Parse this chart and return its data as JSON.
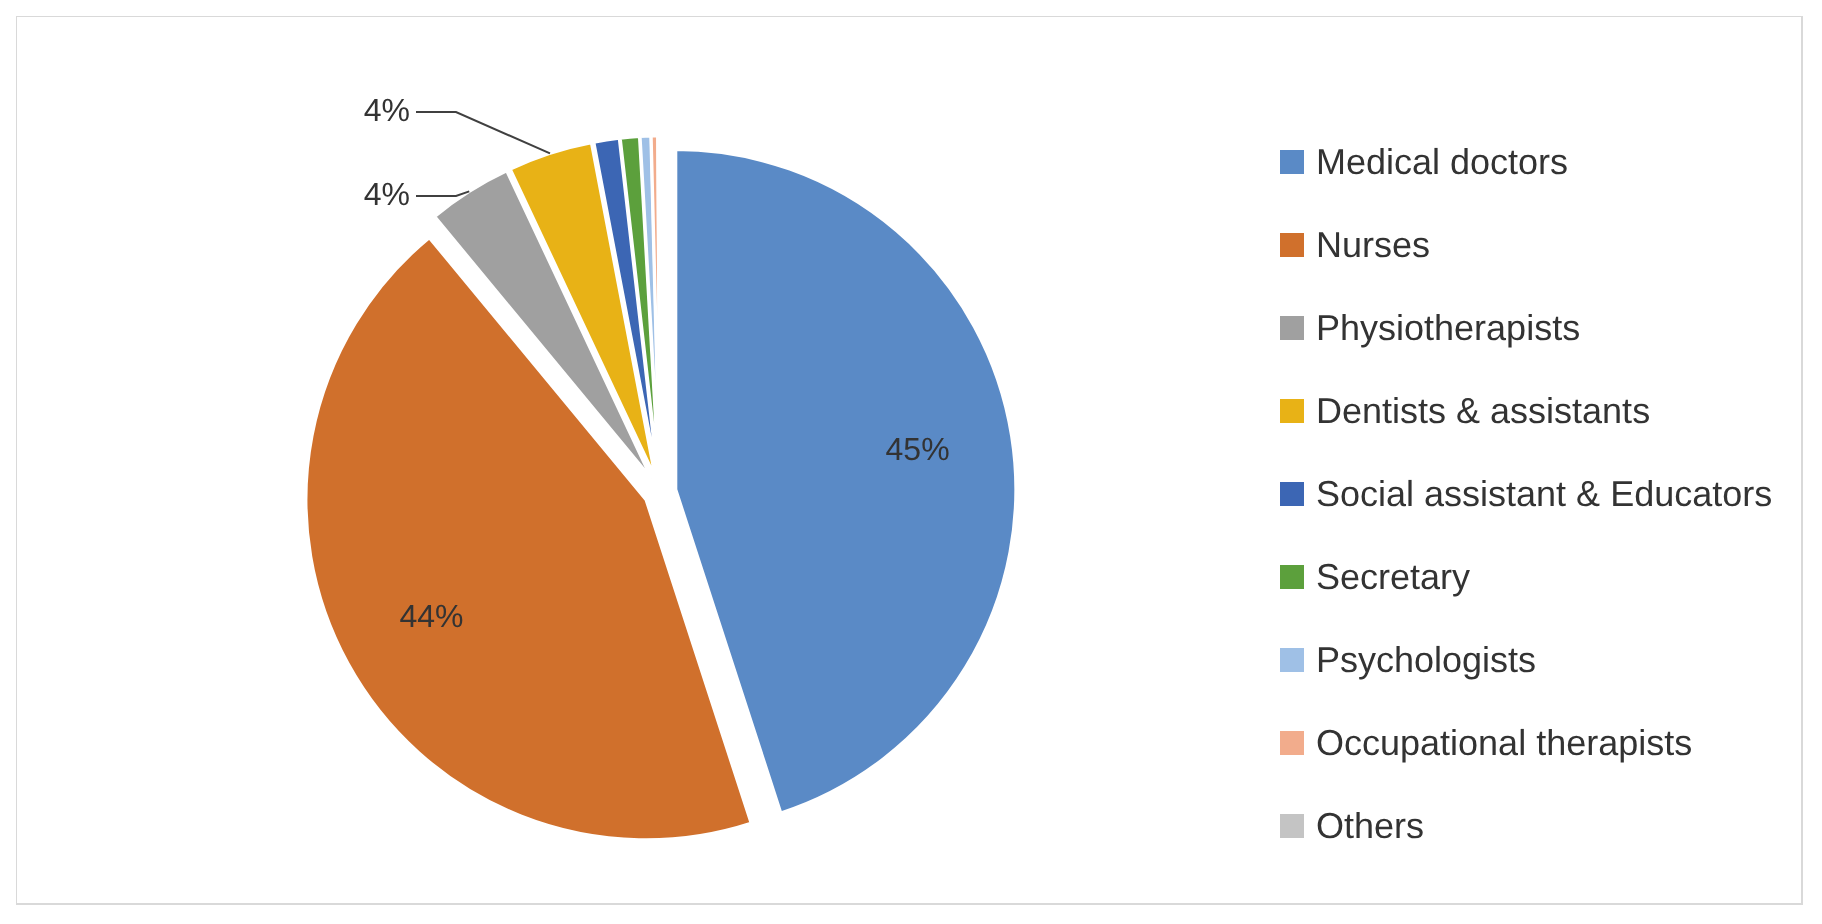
{
  "chart_data": {
    "type": "pie",
    "categories": [
      "Medical doctors",
      "Nurses",
      "Physiotherapists",
      "Dentists & assistants",
      "Social assistant & Educators",
      "Secretary",
      "Psychologists",
      "Occupational therapists",
      "Others"
    ],
    "values": [
      45,
      44,
      4,
      4,
      1.2,
      0.9,
      0.5,
      0.3,
      0.1
    ],
    "value_labels": [
      "45%",
      "44%",
      "4%",
      "4%",
      null,
      null,
      null,
      null,
      null
    ],
    "colors": [
      "#5a8ac6",
      "#d0702c",
      "#a0a0a0",
      "#e8b216",
      "#3c66b4",
      "#5ca03c",
      "#9fc0e6",
      "#f2ac8c",
      "#c4c4c4"
    ],
    "legend": "right"
  }
}
